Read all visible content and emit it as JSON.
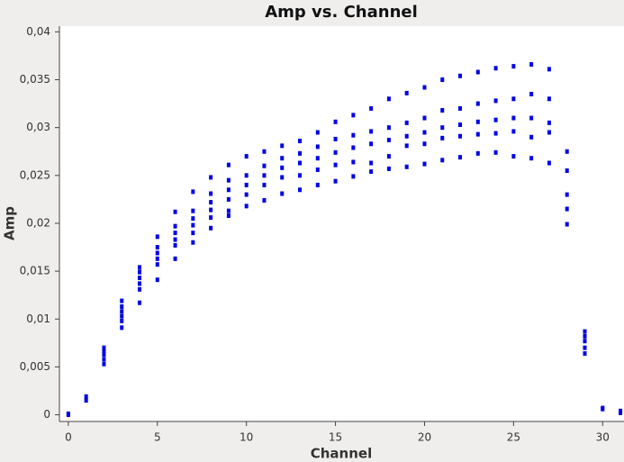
{
  "chart_data": {
    "type": "scatter",
    "title": "Amp vs. Channel",
    "x_label": "Channel",
    "y_label": "Amp",
    "color": "#0000e6",
    "xlim": [
      -0.5,
      31.2
    ],
    "ylim": [
      -0.0007,
      0.0406
    ],
    "xticks": [
      0,
      5,
      10,
      15,
      20,
      25,
      30
    ],
    "yticks": [
      0,
      {
        "value": 0.005,
        "label": "0,005"
      },
      {
        "value": 0.01,
        "label": "0,01"
      },
      {
        "value": 0.015,
        "label": "0,015"
      },
      {
        "value": 0.02,
        "label": "0,02"
      },
      {
        "value": 0.025,
        "label": "0,025"
      },
      {
        "value": 0.03,
        "label": "0,03"
      },
      {
        "value": 0.035,
        "label": "0,035"
      },
      {
        "value": 0.04,
        "label": "0,04"
      }
    ],
    "x": [
      0,
      0,
      1,
      1,
      2,
      2,
      2,
      2,
      2,
      3,
      3,
      3,
      3,
      3,
      3,
      4,
      4,
      4,
      4,
      4,
      4,
      5,
      5,
      5,
      5,
      5,
      5,
      6,
      6,
      6,
      6,
      6,
      6,
      7,
      7,
      7,
      7,
      7,
      7,
      8,
      8,
      8,
      8,
      8,
      8,
      9,
      9,
      9,
      9,
      9,
      9,
      10,
      10,
      10,
      10,
      10,
      11,
      11,
      11,
      11,
      11,
      12,
      12,
      12,
      12,
      12,
      13,
      13,
      13,
      13,
      13,
      14,
      14,
      14,
      14,
      14,
      15,
      15,
      15,
      15,
      15,
      16,
      16,
      16,
      16,
      16,
      17,
      17,
      17,
      17,
      17,
      18,
      18,
      18,
      18,
      18,
      19,
      19,
      19,
      19,
      19,
      20,
      20,
      20,
      20,
      20,
      21,
      21,
      21,
      21,
      21,
      22,
      22,
      22,
      22,
      22,
      23,
      23,
      23,
      23,
      23,
      24,
      24,
      24,
      24,
      24,
      25,
      25,
      25,
      25,
      25,
      26,
      26,
      26,
      26,
      26,
      27,
      27,
      27,
      27,
      27,
      28,
      28,
      28,
      28,
      28,
      29,
      29,
      29,
      29,
      29,
      30,
      30,
      31,
      31
    ],
    "values": [
      0.0,
      0.0001,
      0.0015,
      0.0019,
      0.0053,
      0.0058,
      0.0063,
      0.0067,
      0.007,
      0.0091,
      0.0098,
      0.0103,
      0.0108,
      0.0113,
      0.0119,
      0.0117,
      0.0131,
      0.0137,
      0.0143,
      0.0149,
      0.0154,
      0.0141,
      0.0157,
      0.0163,
      0.0169,
      0.0175,
      0.0186,
      0.0163,
      0.0177,
      0.0183,
      0.019,
      0.0197,
      0.0212,
      0.018,
      0.019,
      0.0198,
      0.0205,
      0.0213,
      0.0233,
      0.0195,
      0.0206,
      0.0214,
      0.0222,
      0.0231,
      0.0248,
      0.0208,
      0.0213,
      0.0225,
      0.0235,
      0.0245,
      0.0261,
      0.0218,
      0.023,
      0.024,
      0.025,
      0.027,
      0.0224,
      0.024,
      0.025,
      0.026,
      0.0275,
      0.0231,
      0.0248,
      0.0258,
      0.0268,
      0.0281,
      0.0235,
      0.025,
      0.0263,
      0.0273,
      0.0286,
      0.024,
      0.0256,
      0.0268,
      0.028,
      0.0295,
      0.0244,
      0.0261,
      0.0274,
      0.0288,
      0.0306,
      0.0249,
      0.0264,
      0.0279,
      0.0292,
      0.0313,
      0.0254,
      0.0263,
      0.0283,
      0.0296,
      0.032,
      0.0257,
      0.027,
      0.0287,
      0.03,
      0.033,
      0.0259,
      0.0281,
      0.0291,
      0.0305,
      0.0336,
      0.0262,
      0.0283,
      0.0295,
      0.031,
      0.0342,
      0.0266,
      0.0289,
      0.03,
      0.0318,
      0.035,
      0.0269,
      0.0291,
      0.0303,
      0.032,
      0.0354,
      0.0273,
      0.0293,
      0.0306,
      0.0325,
      0.0358,
      0.0274,
      0.0294,
      0.0308,
      0.0328,
      0.0362,
      0.027,
      0.0296,
      0.031,
      0.033,
      0.0364,
      0.0268,
      0.029,
      0.031,
      0.0335,
      0.0366,
      0.0263,
      0.0295,
      0.0305,
      0.033,
      0.0361,
      0.0199,
      0.0215,
      0.023,
      0.0255,
      0.0275,
      0.0064,
      0.007,
      0.0077,
      0.0082,
      0.0087,
      0.0006,
      0.0007,
      0.0002,
      0.0004
    ]
  }
}
